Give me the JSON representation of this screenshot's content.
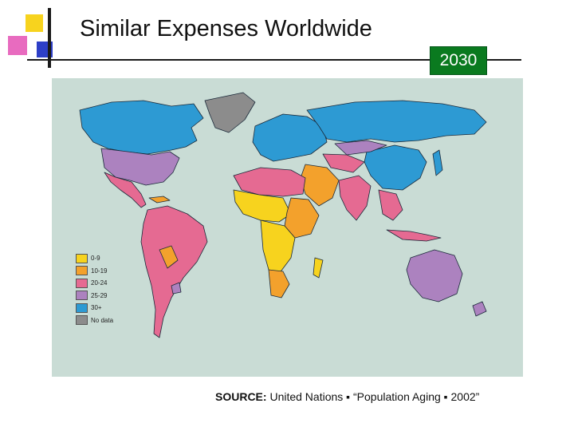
{
  "slide": {
    "title": "Similar Expenses Worldwide",
    "year_badge": "2030",
    "source_label": "SOURCE:",
    "source_text": " United Nations ▪ “Population Aging ▪ 2002”"
  },
  "legend": [
    {
      "label": "0-9",
      "color": "#f7d31e"
    },
    {
      "label": "10-19",
      "color": "#f3a12c"
    },
    {
      "label": "20-24",
      "color": "#e56a92"
    },
    {
      "label": "25-29",
      "color": "#ac82bf"
    },
    {
      "label": "30+",
      "color": "#2d9ad3"
    },
    {
      "label": "No data",
      "color": "#8c8c8c"
    }
  ],
  "colors": {
    "ocean": "#c9dcd5",
    "badge": "#0a7a1f",
    "border": "#1b2a3a"
  }
}
